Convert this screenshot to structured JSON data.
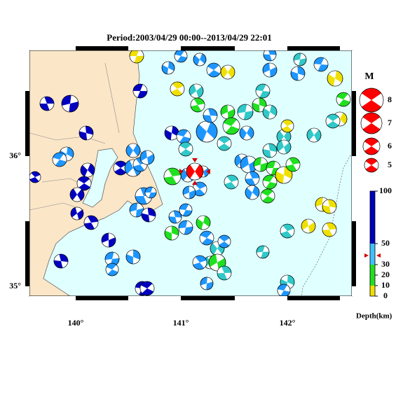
{
  "title": "Period:2003/04/29 00:00--2013/04/29 22:01",
  "longitude_labels": [
    "140°",
    "141°",
    "142°"
  ],
  "latitude_labels": [
    "36°",
    "35°"
  ],
  "magnitude_legend": {
    "title": "M",
    "items": [
      "8",
      "7",
      "6",
      "5"
    ]
  },
  "depth_scale": {
    "ticks": [
      100,
      50,
      30,
      20,
      10,
      0
    ],
    "label": "Depth(km)"
  }
}
